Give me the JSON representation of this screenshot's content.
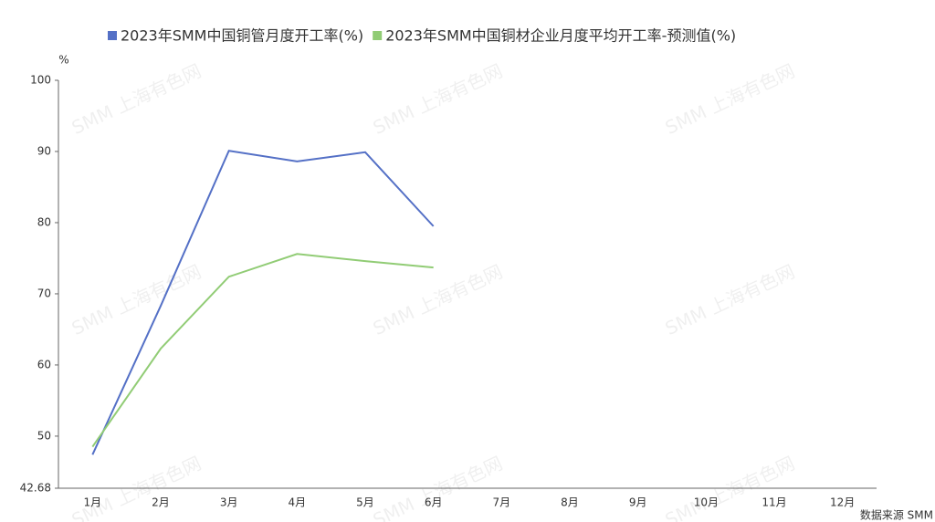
{
  "chart_data": {
    "type": "line",
    "y_unit": "%",
    "source": "数据来源 SMM",
    "watermark": "SMM 上海有色网",
    "categories": [
      "1月",
      "2月",
      "3月",
      "4月",
      "5月",
      "6月",
      "7月",
      "8月",
      "9月",
      "10月",
      "11月",
      "12月"
    ],
    "series": [
      {
        "name": "2023年SMM中国铜管月度开工率(%)",
        "color": "#5470c6",
        "values": [
          47.4,
          68.3,
          90.1,
          88.6,
          89.9,
          79.5,
          null,
          null,
          null,
          null,
          null,
          null
        ]
      },
      {
        "name": "2023年SMM中国铜材企业月度平均开工率-预测值(%)",
        "color": "#91cc75",
        "values": [
          48.5,
          62.3,
          72.4,
          75.6,
          74.6,
          73.7,
          null,
          null,
          null,
          null,
          null,
          null
        ]
      }
    ],
    "ylim": [
      42.68,
      100
    ],
    "yticks": [
      42.68,
      50,
      60,
      70,
      80,
      90,
      100
    ]
  }
}
